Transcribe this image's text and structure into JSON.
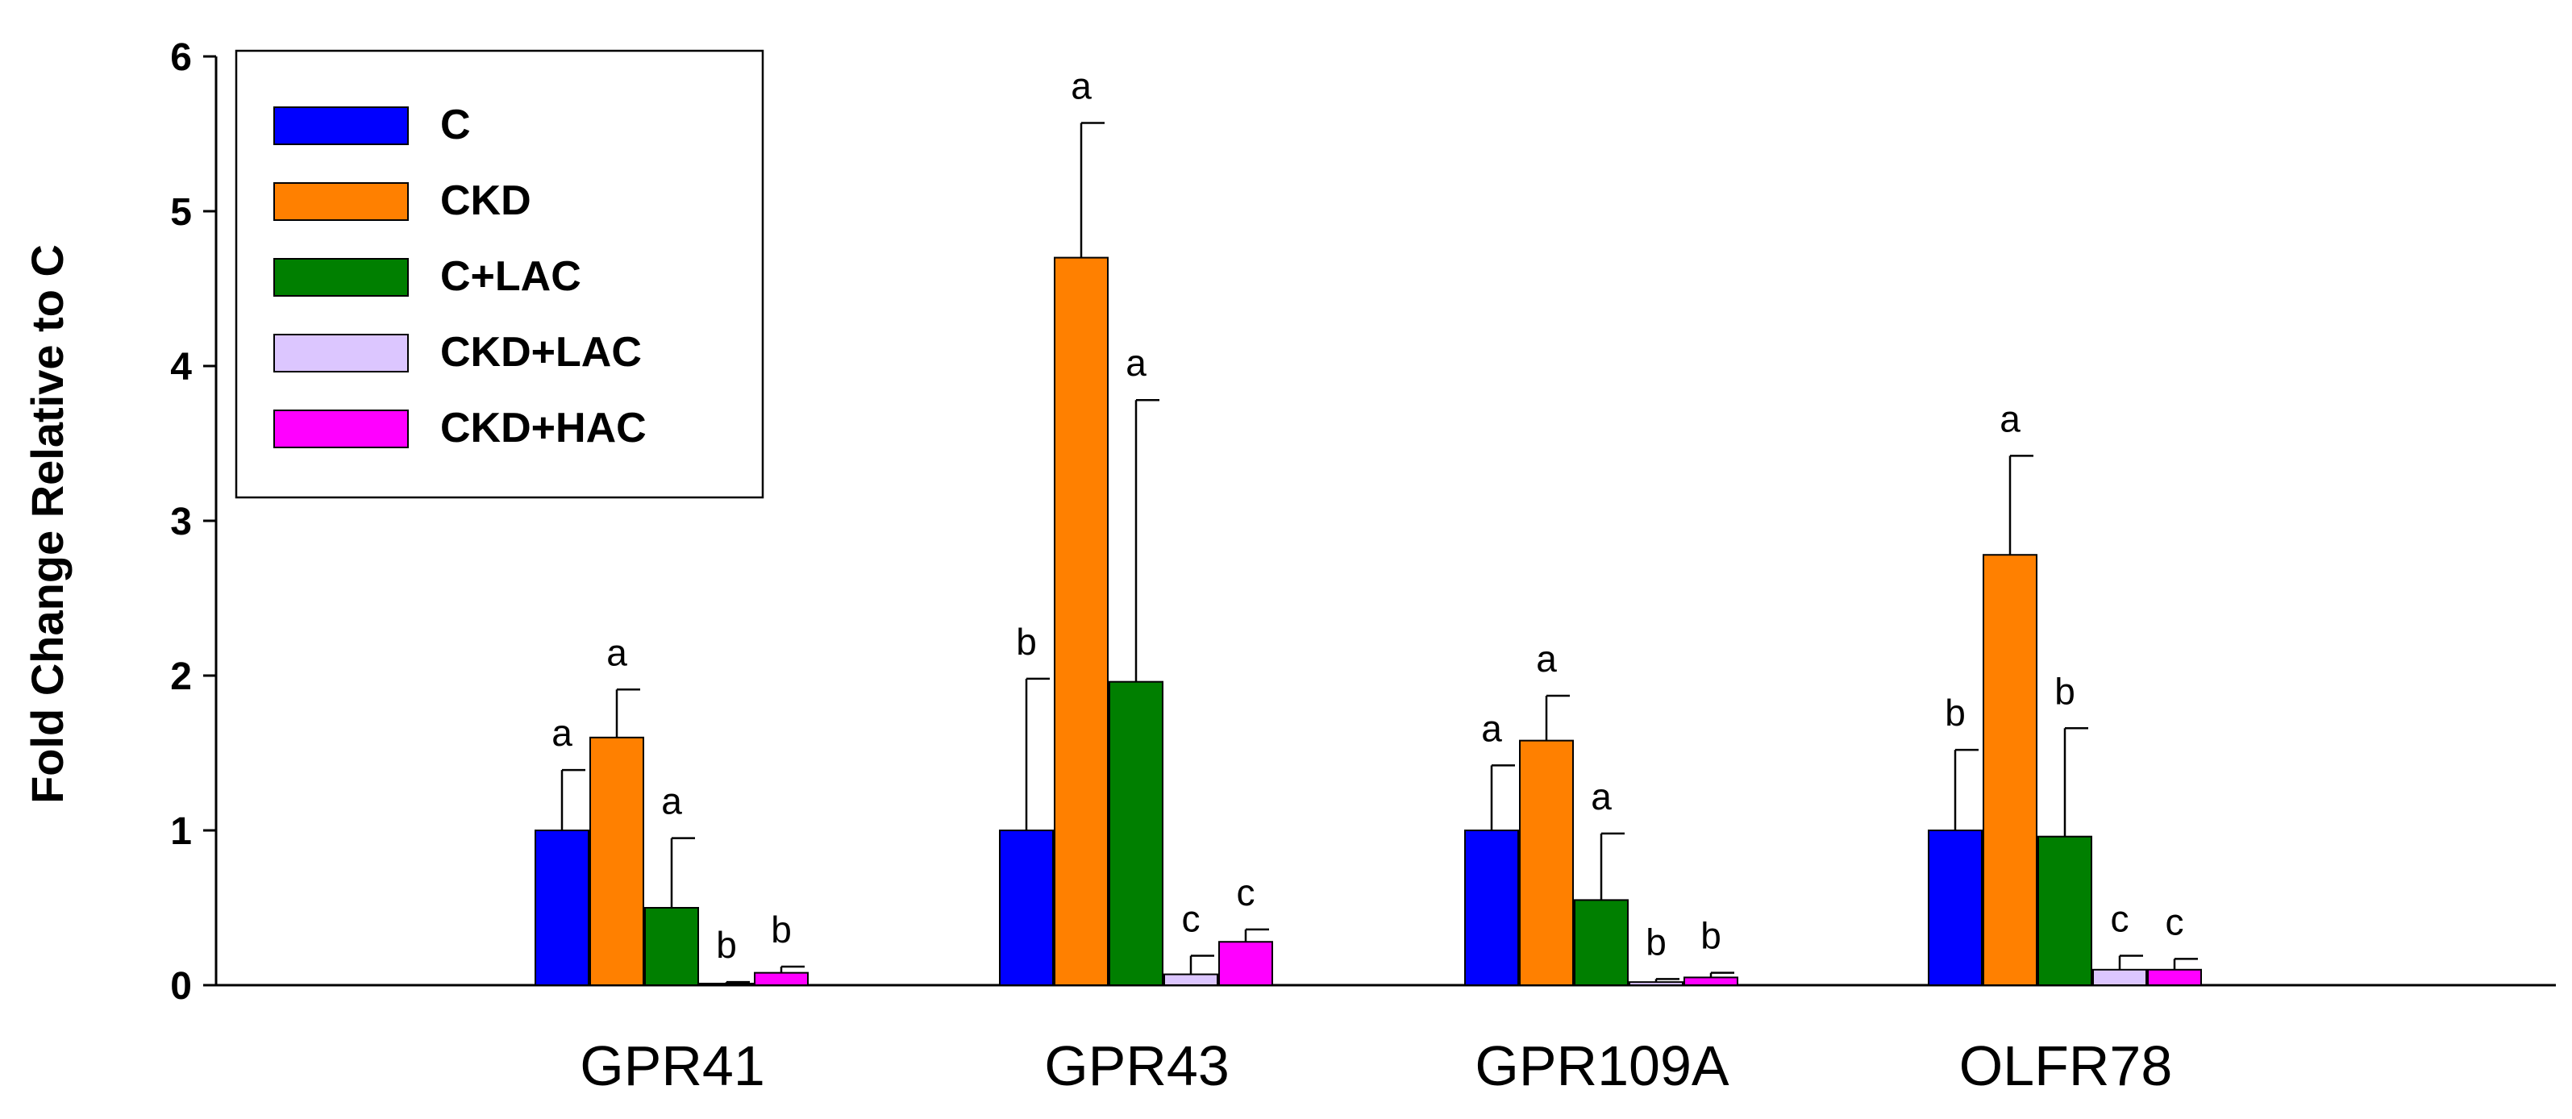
{
  "chart_data": {
    "type": "bar",
    "title": "",
    "xlabel": "",
    "ylabel": "Fold Change Relative to C",
    "ylim": [
      0,
      6
    ],
    "yticks": [
      "0",
      "1",
      "2",
      "3",
      "4",
      "5",
      "6"
    ],
    "categories": [
      "GPR41",
      "GPR43",
      "GPR109A",
      "OLFR78"
    ],
    "legend_position": "top-left",
    "series": [
      {
        "name": "C",
        "color": "#0000ff",
        "values": [
          1.0,
          1.0,
          1.0,
          1.0
        ],
        "errors": [
          0.39,
          0.98,
          0.42,
          0.52
        ],
        "labels": [
          "a",
          "b",
          "a",
          "b"
        ]
      },
      {
        "name": "CKD",
        "color": "#ff8000",
        "values": [
          1.6,
          4.7,
          1.58,
          2.78
        ],
        "errors": [
          0.31,
          0.87,
          0.29,
          0.64
        ],
        "labels": [
          "a",
          "a",
          "a",
          "a"
        ]
      },
      {
        "name": "C+LAC",
        "color": "#007f00",
        "values": [
          0.5,
          1.96,
          0.55,
          0.96
        ],
        "errors": [
          0.45,
          1.82,
          0.43,
          0.7
        ],
        "labels": [
          "a",
          "a",
          "a",
          "b"
        ]
      },
      {
        "name": "CKD+LAC",
        "color": "#dcc6ff",
        "values": [
          0.01,
          0.07,
          0.02,
          0.1
        ],
        "errors": [
          0.01,
          0.12,
          0.02,
          0.09
        ],
        "labels": [
          "b",
          "c",
          "b",
          "c"
        ]
      },
      {
        "name": "CKD+HAC",
        "color": "#ff00ff",
        "values": [
          0.08,
          0.28,
          0.05,
          0.1
        ],
        "errors": [
          0.04,
          0.08,
          0.03,
          0.07
        ],
        "labels": [
          "b",
          "c",
          "b",
          "c"
        ]
      }
    ]
  }
}
